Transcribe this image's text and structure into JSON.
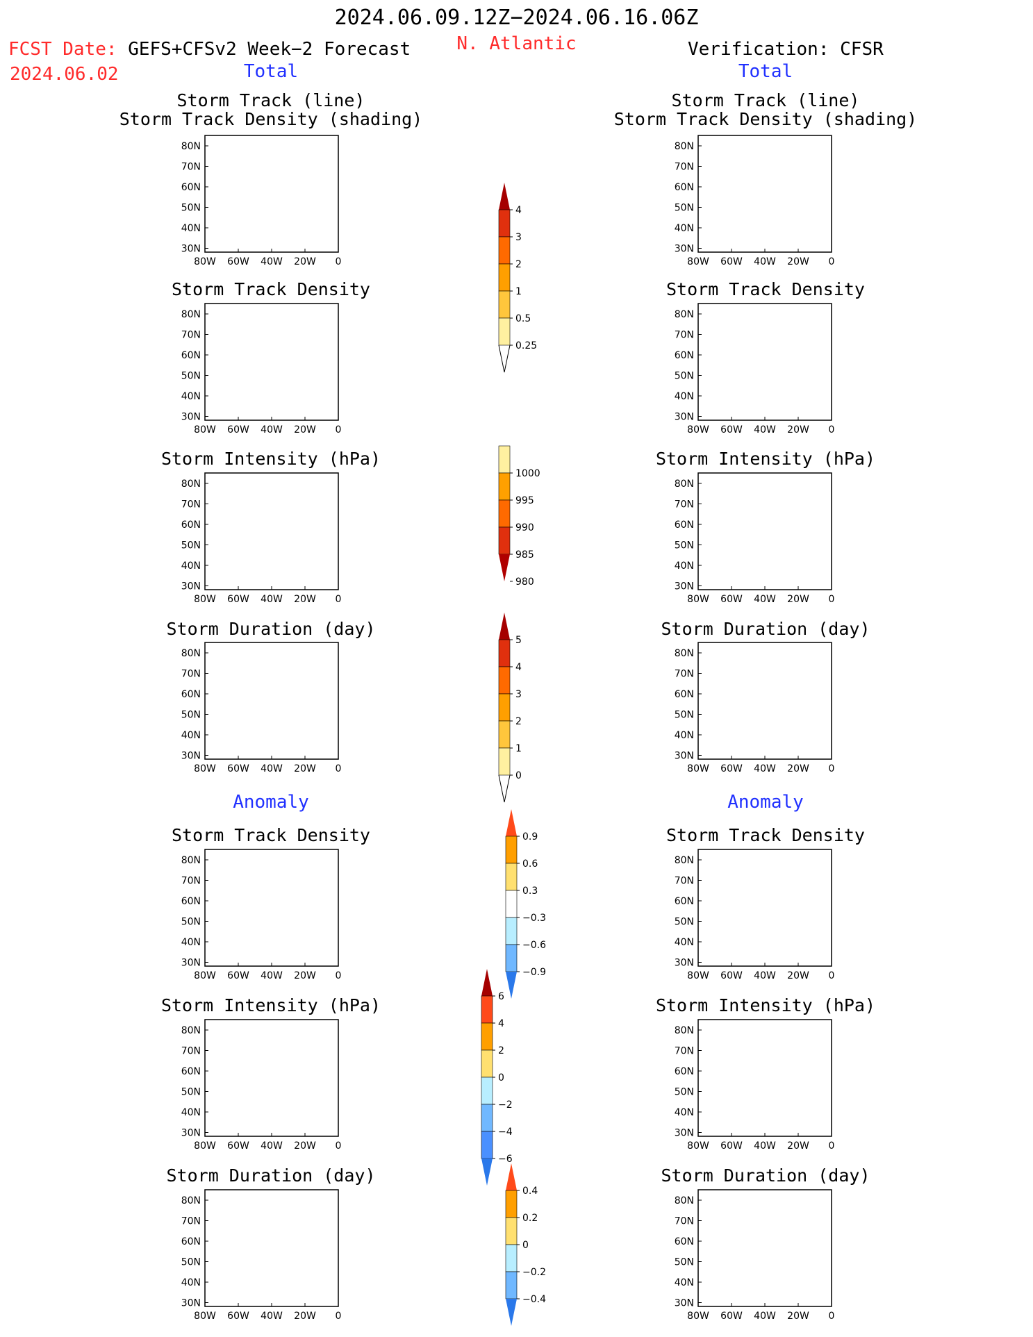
{
  "header": {
    "period": "2024.06.09.12Z−2024.06.16.06Z",
    "fcst_label": "FCST Date:",
    "fcst_model": "GEFS+CFSv2 Week−2 Forecast",
    "fcst_date": "2024.06.02",
    "region": "N. Atlantic",
    "verification": "Verification: CFSR"
  },
  "sections": {
    "total": "Total",
    "anomaly": "Anomaly"
  },
  "panels": {
    "track": [
      "Storm Track (line)",
      "Storm Track Density (shading)"
    ],
    "density": "Storm Track Density",
    "intensity": "Storm Intensity (hPa)",
    "duration": "Storm Duration (day)"
  },
  "axes": {
    "x_ticks": [
      "80W",
      "60W",
      "40W",
      "20W",
      "0"
    ],
    "y_ticks": [
      "80N",
      "70N",
      "60N",
      "50N",
      "40N",
      "30N"
    ]
  },
  "colorbars": {
    "density": {
      "labels": [
        "4",
        "3",
        "2",
        "1",
        "0.5",
        "0.25"
      ],
      "colors": [
        "#a50000",
        "#e0300e",
        "#ff6a00",
        "#ff9f00",
        "#ffc63c",
        "#fff0a0"
      ]
    },
    "intensity": {
      "labels": [
        "1000",
        "995",
        "990",
        "985",
        "980"
      ],
      "colors": [
        "#fff0a0",
        "#ffa000",
        "#ff6a00",
        "#e0300e",
        "#b00000"
      ]
    },
    "duration": {
      "labels": [
        "5",
        "4",
        "3",
        "2",
        "1",
        "0"
      ],
      "colors": [
        "#a50000",
        "#e0300e",
        "#ff6a00",
        "#ff9f00",
        "#ffc63c",
        "#fff0a0"
      ]
    },
    "density_anom": {
      "labels": [
        "0.9",
        "0.6",
        "0.3",
        "−0.3",
        "−0.6",
        "−0.9"
      ],
      "colors": [
        "#ff4a1a",
        "#ff9f00",
        "#ffe070",
        "#ffffff",
        "#b8eeff",
        "#70b8ff",
        "#2a78ea"
      ]
    },
    "intensity_anom": {
      "labels": [
        "6",
        "4",
        "2",
        "0",
        "−2",
        "−4",
        "−6"
      ],
      "colors": [
        "#a50000",
        "#ff4a1a",
        "#ff9f00",
        "#ffe070",
        "#b8eeff",
        "#70b8ff",
        "#4a90ff",
        "#2a78ea"
      ]
    },
    "duration_anom": {
      "labels": [
        "0.4",
        "0.2",
        "0",
        "−0.2",
        "−0.4"
      ],
      "colors": [
        "#ff4a1a",
        "#ff9f00",
        "#ffe070",
        "#b8eeff",
        "#70b8ff",
        "#2a78ea"
      ]
    }
  }
}
